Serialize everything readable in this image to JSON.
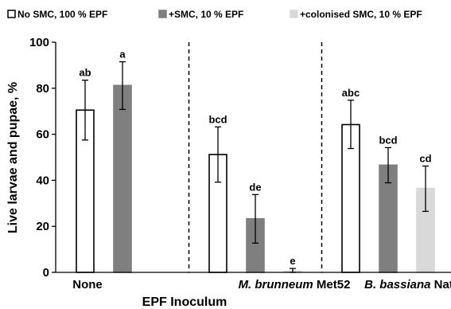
{
  "chart_data": {
    "type": "bar",
    "title": "",
    "xlabel": "EPF Inoculum",
    "ylabel": "Live larvae and pupae, %",
    "ylim": [
      0,
      100
    ],
    "yticks": [
      0,
      20,
      40,
      60,
      80,
      100
    ],
    "grid": false,
    "legend_position": "top",
    "categories": [
      {
        "name": "None",
        "parts": [
          {
            "text": "None",
            "italic": false
          }
        ]
      },
      {
        "name": "M. brunneum Met52",
        "parts": [
          {
            "text": "M. brunneum",
            "italic": true
          },
          {
            "text": " Met52",
            "italic": false
          }
        ]
      },
      {
        "name": "B. bassiana Naturalis",
        "parts": [
          {
            "text": "B. bassiana",
            "italic": true
          },
          {
            "text": " Naturalis",
            "italic": false
          }
        ]
      }
    ],
    "series": [
      {
        "name": "No SMC, 100 % EPF",
        "fill": "#ffffff",
        "stroke": "#000000"
      },
      {
        "name": "+SMC, 10 % EPF",
        "fill": "#7f7f7f",
        "stroke": "#7f7f7f"
      },
      {
        "name": "+colonised SMC, 10 % EPF",
        "fill": "#d9d9d9",
        "stroke": "#d9d9d9"
      }
    ],
    "bars": [
      {
        "category": 0,
        "series": 0,
        "value": 70.5,
        "err_low": 57.5,
        "err_high": 83.5,
        "label": "ab"
      },
      {
        "category": 0,
        "series": 1,
        "value": 81.2,
        "err_low": 70.8,
        "err_high": 91.5,
        "label": "a"
      },
      {
        "category": 1,
        "series": 0,
        "value": 51.2,
        "err_low": 39.2,
        "err_high": 63.2,
        "label": "bcd"
      },
      {
        "category": 1,
        "series": 1,
        "value": 23.3,
        "err_low": 12.7,
        "err_high": 33.8,
        "label": "de"
      },
      {
        "category": 1,
        "series": 2,
        "value": 0.5,
        "err_low": 0.0,
        "err_high": 1.7,
        "label": "e"
      },
      {
        "category": 2,
        "series": 0,
        "value": 64.2,
        "err_low": 53.8,
        "err_high": 74.8,
        "label": "abc"
      },
      {
        "category": 2,
        "series": 1,
        "value": 46.6,
        "err_low": 38.9,
        "err_high": 54.2,
        "label": "bcd"
      },
      {
        "category": 2,
        "series": 2,
        "value": 36.5,
        "err_low": 26.5,
        "err_high": 46.2,
        "label": "cd"
      }
    ],
    "colors": {
      "axis": "#000000",
      "divider": "#000000",
      "error_bar": "#000000"
    }
  }
}
